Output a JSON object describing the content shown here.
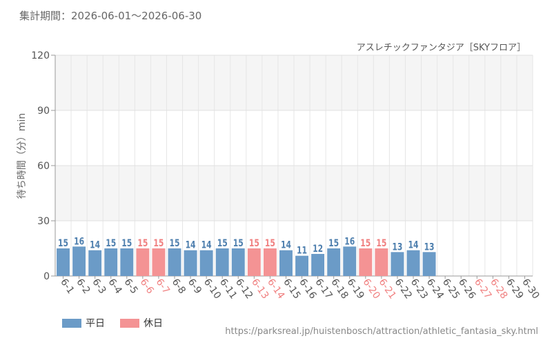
{
  "period_text": "集計期間：2026-06-01～2026-06-30",
  "source_url": "https://parksreal.jp/huistenbosch/attraction/athletic_fantasia_sky.html",
  "colors": {
    "weekday": "#6b9bc7",
    "holiday": "#f49394",
    "weekday_label": "#4e7fae",
    "holiday_label": "#f08080"
  },
  "chart_data": {
    "type": "bar",
    "title": "アスレチックファンタジア［SKYフロア］",
    "ylabel": "待ち時間（分）min",
    "xlabel": "",
    "ylim": [
      0,
      120
    ],
    "yticks": [
      0,
      30,
      60,
      90,
      120
    ],
    "categories": [
      "6-1",
      "6-2",
      "6-3",
      "6-4",
      "6-5",
      "6-6",
      "6-7",
      "6-8",
      "6-9",
      "6-10",
      "6-11",
      "6-12",
      "6-13",
      "6-14",
      "6-15",
      "6-16",
      "6-17",
      "6-18",
      "6-19",
      "6-20",
      "6-21",
      "6-22",
      "6-23",
      "6-24",
      "6-25",
      "6-26",
      "6-27",
      "6-28",
      "6-29",
      "6-30"
    ],
    "values": [
      15,
      16,
      14,
      15,
      15,
      15,
      15,
      15,
      14,
      14,
      15,
      15,
      15,
      15,
      14,
      11,
      12,
      15,
      16,
      15,
      15,
      13,
      14,
      13,
      null,
      null,
      null,
      null,
      null,
      null
    ],
    "day_type": [
      "weekday",
      "weekday",
      "weekday",
      "weekday",
      "weekday",
      "holiday",
      "holiday",
      "weekday",
      "weekday",
      "weekday",
      "weekday",
      "weekday",
      "holiday",
      "holiday",
      "weekday",
      "weekday",
      "weekday",
      "weekday",
      "weekday",
      "holiday",
      "holiday",
      "weekday",
      "weekday",
      "weekday",
      "weekday",
      "weekday",
      "holiday",
      "holiday",
      "weekday",
      "weekday"
    ],
    "legend": [
      {
        "name": "平日",
        "type": "weekday"
      },
      {
        "name": "休日",
        "type": "holiday"
      }
    ],
    "legend_position": "bottom-left",
    "grid": true
  }
}
